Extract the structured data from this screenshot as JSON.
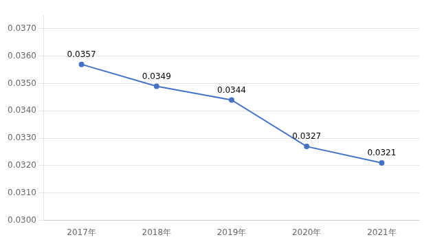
{
  "chart_data": {
    "type": "line",
    "categories": [
      "2017年",
      "2018年",
      "2019年",
      "2020年",
      "2021年"
    ],
    "values": [
      0.0357,
      0.0349,
      0.0344,
      0.0327,
      0.0321
    ],
    "color": "#4472C4",
    "ylim": [
      0.03,
      0.0375
    ],
    "yticks": [
      {
        "value": 0.03,
        "label": "0.0300"
      },
      {
        "value": 0.031,
        "label": "0.0310"
      },
      {
        "value": 0.032,
        "label": "0.0320"
      },
      {
        "value": 0.033,
        "label": "0.0330"
      },
      {
        "value": 0.034,
        "label": "0.0340"
      },
      {
        "value": 0.035,
        "label": "0.0350"
      },
      {
        "value": 0.036,
        "label": "0.0360"
      },
      {
        "value": 0.037,
        "label": "0.0370"
      }
    ],
    "grid": true,
    "data_labels": true
  }
}
